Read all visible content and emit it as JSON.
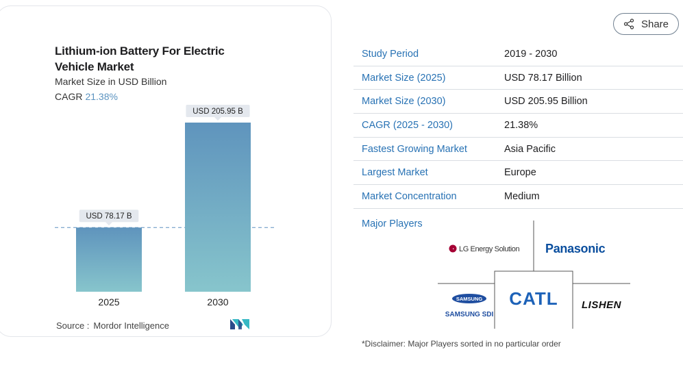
{
  "chart": {
    "title": "Lithium-ion Battery For Electric Vehicle Market",
    "subtitle": "Market Size in USD Billion",
    "cagr_label": "CAGR",
    "cagr_value": "21.38%",
    "source_label": "Source :",
    "source_value": "Mordor Intelligence",
    "colors": {
      "bar_top": "#5f94bd",
      "bar_bottom": "#87c5cc",
      "dash": "#5b8fbf",
      "callout_bg": "#e4e8ee"
    }
  },
  "chart_data": {
    "type": "bar",
    "title": "Lithium-ion Battery For Electric Vehicle Market",
    "subtitle": "Market Size in USD Billion",
    "categories": [
      "2025",
      "2030"
    ],
    "values": [
      78.17,
      205.95
    ],
    "data_labels": [
      "USD 78.17 B",
      "USD 205.95 B"
    ],
    "ylim": [
      0,
      205.95
    ],
    "grid": false,
    "reference_line": 78.17
  },
  "share": {
    "label": "Share"
  },
  "info_rows": [
    {
      "key": "Study Period",
      "value": "2019 - 2030"
    },
    {
      "key": "Market Size (2025)",
      "value": "USD 78.17 Billion"
    },
    {
      "key": "Market Size (2030)",
      "value": "USD 205.95 Billion"
    },
    {
      "key": "CAGR (2025 - 2030)",
      "value": "21.38%"
    },
    {
      "key": "Fastest Growing Market",
      "value": "Asia Pacific"
    },
    {
      "key": "Largest Market",
      "value": "Europe"
    },
    {
      "key": "Market Concentration",
      "value": "Medium"
    }
  ],
  "players": {
    "label": "Major Players",
    "logos": [
      "LG Energy Solution",
      "Panasonic",
      "SAMSUNG",
      "SAMSUNG SDI",
      "CATL",
      "LISHEN"
    ]
  },
  "disclaimer": "*Disclaimer: Major Players sorted in no particular order"
}
